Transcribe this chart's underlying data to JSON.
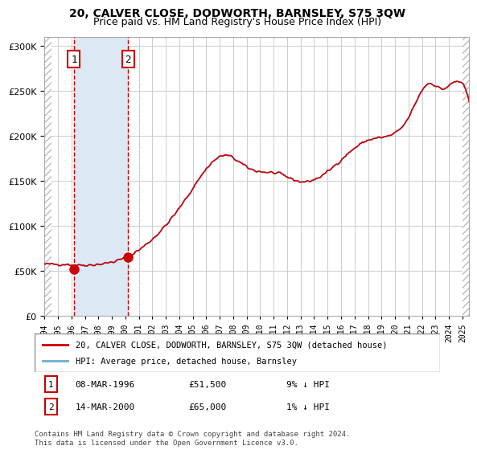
{
  "title1": "20, CALVER CLOSE, DODWORTH, BARNSLEY, S75 3QW",
  "title2": "Price paid vs. HM Land Registry's House Price Index (HPI)",
  "legend_line1": "20, CALVER CLOSE, DODWORTH, BARNSLEY, S75 3QW (detached house)",
  "legend_line2": "HPI: Average price, detached house, Barnsley",
  "purchase1_date": "08-MAR-1996",
  "purchase1_price": 51500,
  "purchase1_label": "9% ↓ HPI",
  "purchase2_date": "14-MAR-2000",
  "purchase2_price": 65000,
  "purchase2_label": "1% ↓ HPI",
  "purchase1_x": 1996.19,
  "purchase2_x": 2000.21,
  "hpi_color": "#6baed6",
  "price_color": "#cc0000",
  "dot_color": "#cc0000",
  "vline_color": "#cc0000",
  "shade_color": "#dce9f5",
  "hatch_color": "#cccccc",
  "grid_color": "#cccccc",
  "bg_color": "#ffffff",
  "footer": "Contains HM Land Registry data © Crown copyright and database right 2024.\nThis data is licensed under the Open Government Licence v3.0.",
  "ylim": [
    0,
    310000
  ],
  "xlim_start": 1994.0,
  "xlim_end": 2025.5
}
